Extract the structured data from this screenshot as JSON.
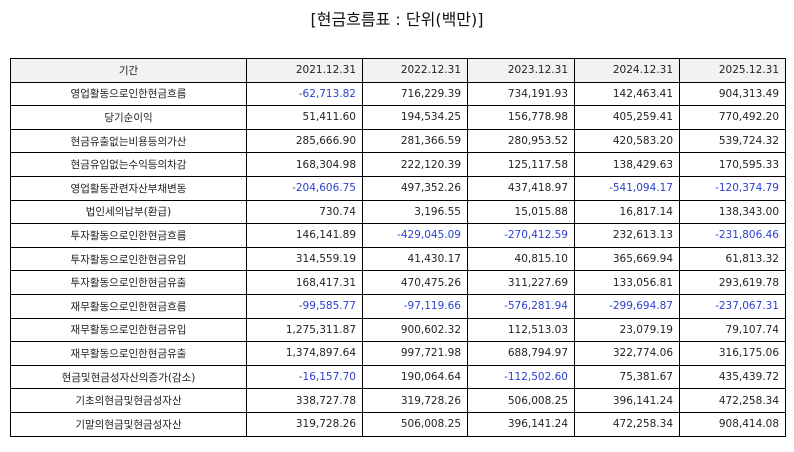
{
  "title": "[현금흐름표 : 단위(백만)]",
  "colors": {
    "negative": "#2a3fd1",
    "header_bg": "#f2f2f2"
  },
  "table": {
    "header": [
      "기간",
      "2021.12.31",
      "2022.12.31",
      "2023.12.31",
      "2024.12.31",
      "2025.12.31"
    ],
    "rows": [
      {
        "label": "영업활동으로인한현금흐름",
        "values": [
          "-62,713.82",
          "716,229.39",
          "734,191.93",
          "142,463.41",
          "904,313.49"
        ]
      },
      {
        "label": "당기순이익",
        "values": [
          "51,411.60",
          "194,534.25",
          "156,778.98",
          "405,259.41",
          "770,492.20"
        ]
      },
      {
        "label": "현금유출없는비용등의가산",
        "values": [
          "285,666.90",
          "281,366.59",
          "280,953.52",
          "420,583.20",
          "539,724.32"
        ]
      },
      {
        "label": "현금유입없는수익등의차감",
        "values": [
          "168,304.98",
          "222,120.39",
          "125,117.58",
          "138,429.63",
          "170,595.33"
        ]
      },
      {
        "label": "영업활동관련자산부채변동",
        "values": [
          "-204,606.75",
          "497,352.26",
          "437,418.97",
          "-541,094.17",
          "-120,374.79"
        ]
      },
      {
        "label": "법인세의납부(환급)",
        "values": [
          "730.74",
          "3,196.55",
          "15,015.88",
          "16,817.14",
          "138,343.00"
        ]
      },
      {
        "label": "투자활동으로인한현금흐름",
        "values": [
          "146,141.89",
          "-429,045.09",
          "-270,412.59",
          "232,613.13",
          "-231,806.46"
        ]
      },
      {
        "label": "투자활동으로인한현금유입",
        "values": [
          "314,559.19",
          "41,430.17",
          "40,815.10",
          "365,669.94",
          "61,813.32"
        ]
      },
      {
        "label": "투자활동으로인한현금유출",
        "values": [
          "168,417.31",
          "470,475.26",
          "311,227.69",
          "133,056.81",
          "293,619.78"
        ]
      },
      {
        "label": "재무활동으로인한현금흐름",
        "values": [
          "-99,585.77",
          "-97,119.66",
          "-576,281.94",
          "-299,694.87",
          "-237,067.31"
        ]
      },
      {
        "label": "재무활동으로인한현금유입",
        "values": [
          "1,275,311.87",
          "900,602.32",
          "112,513.03",
          "23,079.19",
          "79,107.74"
        ]
      },
      {
        "label": "재무활동으로인한현금유출",
        "values": [
          "1,374,897.64",
          "997,721.98",
          "688,794.97",
          "322,774.06",
          "316,175.06"
        ]
      },
      {
        "label": "현금및현금성자산의증가(감소)",
        "values": [
          "-16,157.70",
          "190,064.64",
          "-112,502.60",
          "75,381.67",
          "435,439.72"
        ]
      },
      {
        "label": "기초의현금및현금성자산",
        "values": [
          "338,727.78",
          "319,728.26",
          "506,008.25",
          "396,141.24",
          "472,258.34"
        ]
      },
      {
        "label": "기말의현금및현금성자산",
        "values": [
          "319,728.26",
          "506,008.25",
          "396,141.24",
          "472,258.34",
          "908,414.08"
        ]
      }
    ]
  }
}
